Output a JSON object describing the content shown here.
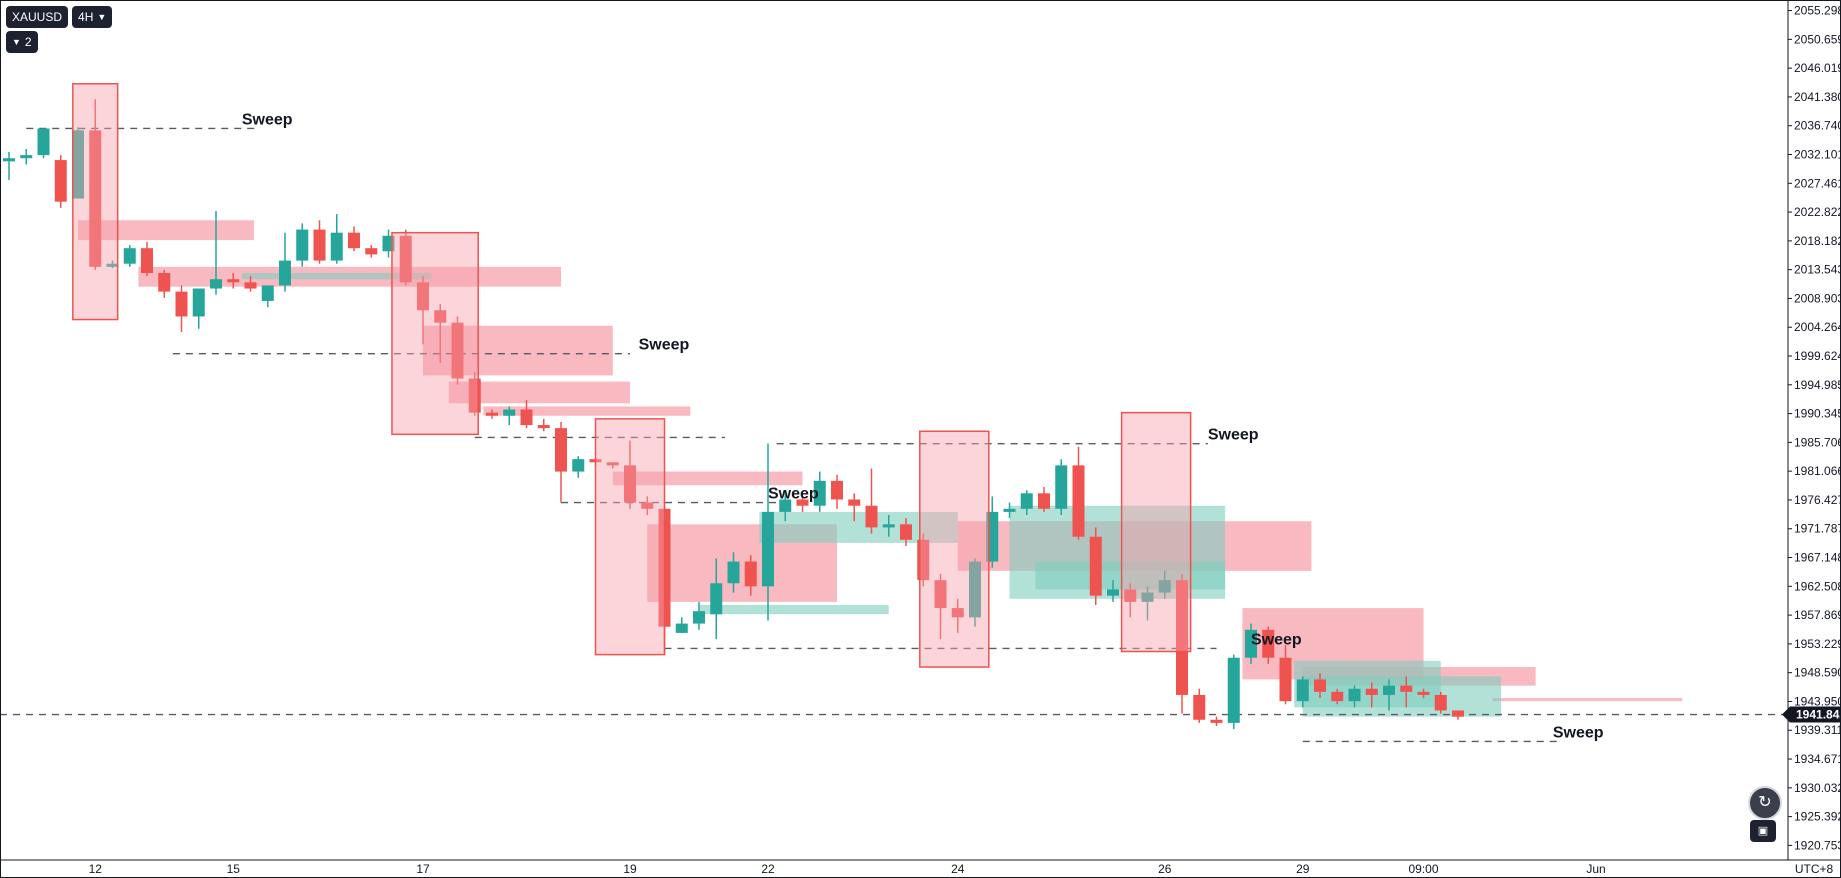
{
  "toolbar": {
    "symbol": "XAUUSD",
    "interval": "4H",
    "layers_count": "2"
  },
  "icons": {
    "interval_dropdown": "chevron-down-icon",
    "layers_toggle": "chevron-down-icon",
    "reset": "rotate-icon",
    "auto_scale": "auto-scale-icon"
  },
  "chart_data": {
    "type": "candlestick",
    "title": "",
    "xlabel": "",
    "ylabel": "",
    "timezone": "UTC+8",
    "ylim": [
      1918.4,
      2057.0
    ],
    "grid": false,
    "colors": {
      "up": "#26a69a",
      "down": "#ef5350",
      "zone_red": "#f7a1ab",
      "zone_green": "#7fcdbe",
      "text": "#131722"
    },
    "price_ticks": [
      "2055.298",
      "2050.659",
      "2046.019",
      "2041.380",
      "2036.740",
      "2032.101",
      "2027.461",
      "2022.822",
      "2018.182",
      "2013.543",
      "2008.903",
      "2004.264",
      "1999.624",
      "1994.985",
      "1990.345",
      "1985.706",
      "1981.066",
      "1976.427",
      "1971.787",
      "1967.148",
      "1962.508",
      "1957.869",
      "1953.229",
      "1948.590",
      "1943.950",
      "1939.311",
      "1934.671",
      "1930.032",
      "1925.392",
      "1920.753"
    ],
    "time_ticks": [
      {
        "label": "12",
        "bar": 5
      },
      {
        "label": "15",
        "bar": 13
      },
      {
        "label": "17",
        "bar": 24
      },
      {
        "label": "19",
        "bar": 36
      },
      {
        "label": "22",
        "bar": 44
      },
      {
        "label": "24",
        "bar": 55
      },
      {
        "label": "26",
        "bar": 67
      },
      {
        "label": "29",
        "bar": 75
      },
      {
        "label": "09:00",
        "bar": 82
      },
      {
        "label": "Jun",
        "bar": 92
      }
    ],
    "current_price": "1941.842",
    "candles": [
      [
        2031.0,
        2032.5,
        2028.0,
        2031.5
      ],
      [
        2031.5,
        2033.0,
        2030.5,
        2032.0
      ],
      [
        2032.0,
        2036.3,
        2031.5,
        2036.3
      ],
      [
        2031.2,
        2032.0,
        2023.5,
        2024.5
      ],
      [
        2025.0,
        2036.5,
        2025.0,
        2036.0
      ],
      [
        2036.0,
        2041.0,
        2013.5,
        2014.0
      ],
      [
        2014.0,
        2015.0,
        2013.8,
        2014.5
      ],
      [
        2014.5,
        2017.5,
        2014.0,
        2017.0
      ],
      [
        2017.0,
        2018.0,
        2012.5,
        2013.0
      ],
      [
        2013.0,
        2013.5,
        2009.0,
        2010.0
      ],
      [
        2010.0,
        2011.0,
        2003.5,
        2006.0
      ],
      [
        2006.0,
        2010.5,
        2004.0,
        2010.5
      ],
      [
        2010.5,
        2023.0,
        2009.5,
        2012.0
      ],
      [
        2012.0,
        2013.0,
        2010.5,
        2011.5
      ],
      [
        2011.5,
        2012.5,
        2010.0,
        2010.5
      ],
      [
        2008.5,
        2011.0,
        2007.5,
        2011.0
      ],
      [
        2011.0,
        2019.5,
        2010.0,
        2015.0
      ],
      [
        2015.0,
        2021.0,
        2014.0,
        2020.0
      ],
      [
        2020.0,
        2021.5,
        2014.5,
        2015.0
      ],
      [
        2015.0,
        2022.5,
        2014.5,
        2019.5
      ],
      [
        2019.5,
        2020.5,
        2016.5,
        2017.0
      ],
      [
        2017.0,
        2017.5,
        2015.5,
        2016.0
      ],
      [
        2016.5,
        2020.0,
        2015.5,
        2019.0
      ],
      [
        2019.0,
        2020.0,
        2011.0,
        2011.5
      ],
      [
        2011.5,
        2012.5,
        2001.5,
        2007.0
      ],
      [
        2007.0,
        2008.0,
        1998.5,
        2005.0
      ],
      [
        2005.0,
        2006.0,
        1995.0,
        1996.0
      ],
      [
        1996.0,
        1997.0,
        1990.0,
        1990.5
      ],
      [
        1990.5,
        1991.0,
        1989.5,
        1990.0
      ],
      [
        1990.0,
        1991.5,
        1988.5,
        1991.0
      ],
      [
        1991.0,
        1992.5,
        1988.0,
        1988.5
      ],
      [
        1988.5,
        1989.5,
        1987.5,
        1988.0
      ],
      [
        1988.0,
        1989.0,
        1976.0,
        1981.0
      ],
      [
        1981.0,
        1983.5,
        1980.0,
        1983.0
      ],
      [
        1983.0,
        1983.0,
        1982.0,
        1982.5
      ],
      [
        1982.5,
        1982.5,
        1981.5,
        1982.0
      ],
      [
        1982.0,
        1986.0,
        1975.0,
        1976.0
      ],
      [
        1976.0,
        1977.0,
        1974.0,
        1975.0
      ],
      [
        1975.0,
        1975.5,
        1951.5,
        1956.0
      ],
      [
        1955.0,
        1957.5,
        1955.0,
        1956.5
      ],
      [
        1956.5,
        1960.0,
        1955.5,
        1958.5
      ],
      [
        1958.0,
        1967.0,
        1954.0,
        1963.0
      ],
      [
        1963.0,
        1968.0,
        1961.5,
        1966.5
      ],
      [
        1966.5,
        1967.5,
        1961.0,
        1962.5
      ],
      [
        1962.5,
        1985.5,
        1957.0,
        1974.5
      ],
      [
        1974.5,
        1978.0,
        1973.0,
        1976.5
      ],
      [
        1976.5,
        1977.0,
        1974.5,
        1975.5
      ],
      [
        1975.5,
        1981.0,
        1974.5,
        1979.5
      ],
      [
        1979.5,
        1980.5,
        1975.0,
        1976.5
      ],
      [
        1976.5,
        1977.5,
        1973.0,
        1975.5
      ],
      [
        1975.5,
        1981.5,
        1971.0,
        1972.0
      ],
      [
        1972.0,
        1974.0,
        1970.5,
        1972.5
      ],
      [
        1972.5,
        1973.5,
        1969.0,
        1970.0
      ],
      [
        1970.0,
        1971.0,
        1962.5,
        1963.5
      ],
      [
        1963.5,
        1964.5,
        1954.0,
        1959.0
      ],
      [
        1959.0,
        1960.5,
        1955.0,
        1957.5
      ],
      [
        1957.5,
        1967.0,
        1956.0,
        1966.5
      ],
      [
        1966.5,
        1977.0,
        1965.5,
        1974.5
      ],
      [
        1974.5,
        1976.0,
        1973.5,
        1975.0
      ],
      [
        1975.0,
        1978.0,
        1974.0,
        1977.5
      ],
      [
        1977.5,
        1978.5,
        1974.5,
        1975.0
      ],
      [
        1975.0,
        1983.0,
        1974.0,
        1982.0
      ],
      [
        1982.0,
        1985.0,
        1970.0,
        1970.5
      ],
      [
        1970.5,
        1972.0,
        1959.5,
        1961.0
      ],
      [
        1961.0,
        1963.5,
        1960.0,
        1962.0
      ],
      [
        1962.0,
        1963.0,
        1957.5,
        1960.0
      ],
      [
        1960.0,
        1962.5,
        1957.0,
        1961.5
      ],
      [
        1961.5,
        1965.0,
        1960.5,
        1963.5
      ],
      [
        1963.5,
        1964.5,
        1942.0,
        1945.0
      ],
      [
        1945.0,
        1946.0,
        1940.5,
        1941.0
      ],
      [
        1941.0,
        1941.5,
        1940.0,
        1940.5
      ],
      [
        1940.5,
        1951.5,
        1939.5,
        1951.0
      ],
      [
        1951.0,
        1956.5,
        1950.0,
        1955.5
      ],
      [
        1955.5,
        1956.0,
        1950.0,
        1951.0
      ],
      [
        1951.0,
        1953.0,
        1943.5,
        1944.0
      ],
      [
        1944.0,
        1948.0,
        1943.0,
        1947.5
      ],
      [
        1947.5,
        1948.5,
        1944.5,
        1945.5
      ],
      [
        1945.5,
        1946.0,
        1943.5,
        1944.0
      ],
      [
        1944.0,
        1946.5,
        1943.0,
        1946.0
      ],
      [
        1946.0,
        1947.0,
        1943.0,
        1945.0
      ],
      [
        1945.0,
        1947.5,
        1942.5,
        1946.5
      ],
      [
        1946.5,
        1948.0,
        1943.0,
        1945.5
      ],
      [
        1945.5,
        1946.0,
        1944.5,
        1945.0
      ],
      [
        1945.0,
        1945.5,
        1942.0,
        1942.5
      ],
      [
        1942.5,
        1942.5,
        1941.0,
        1941.5
      ]
    ],
    "red_boxes": [
      {
        "bar_start": 3.7,
        "bar_end": 6.3,
        "y_top": 2043.5,
        "y_bottom": 2005.5
      },
      {
        "bar_start": 22.2,
        "bar_end": 27.2,
        "y_top": 2019.5,
        "y_bottom": 1987.0
      },
      {
        "bar_start": 34.0,
        "bar_end": 38.0,
        "y_top": 1989.5,
        "y_bottom": 1951.5
      },
      {
        "bar_start": 52.8,
        "bar_end": 56.8,
        "y_top": 1987.5,
        "y_bottom": 1949.5
      },
      {
        "bar_start": 64.5,
        "bar_end": 68.5,
        "y_top": 1990.5,
        "y_bottom": 1952.0
      }
    ],
    "red_zones": [
      {
        "bar_start": 4.0,
        "bar_end": 14.2,
        "y_top": 2021.5,
        "y_bottom": 2018.3
      },
      {
        "bar_start": 7.5,
        "bar_end": 32.0,
        "y_top": 2014.0,
        "y_bottom": 2010.8
      },
      {
        "bar_start": 24.0,
        "bar_end": 35.0,
        "y_top": 2004.5,
        "y_bottom": 1996.5
      },
      {
        "bar_start": 25.5,
        "bar_end": 36.0,
        "y_top": 1995.5,
        "y_bottom": 1992.0
      },
      {
        "bar_start": 27.5,
        "bar_end": 39.5,
        "y_top": 1991.5,
        "y_bottom": 1990.0
      },
      {
        "bar_start": 35.0,
        "bar_end": 46.0,
        "y_top": 1981.0,
        "y_bottom": 1978.8
      },
      {
        "bar_start": 37.0,
        "bar_end": 48.0,
        "y_top": 1972.5,
        "y_bottom": 1960.0
      },
      {
        "bar_start": 55.0,
        "bar_end": 75.5,
        "y_top": 1973.0,
        "y_bottom": 1965.0
      },
      {
        "bar_start": 71.5,
        "bar_end": 82.0,
        "y_top": 1959.0,
        "y_bottom": 1947.5
      },
      {
        "bar_start": 75.0,
        "bar_end": 88.5,
        "y_top": 1949.5,
        "y_bottom": 1946.5
      },
      {
        "bar_start": 86.0,
        "bar_end": 97.0,
        "y_top": 1944.5,
        "y_bottom": 1944.0
      }
    ],
    "green_zones": [
      {
        "bar_start": 13.5,
        "bar_end": 24.5,
        "y_top": 2013.0,
        "y_bottom": 2012.0
      },
      {
        "bar_start": 40.0,
        "bar_end": 51.0,
        "y_top": 1959.5,
        "y_bottom": 1958.0
      },
      {
        "bar_start": 43.5,
        "bar_end": 55.0,
        "y_top": 1974.5,
        "y_bottom": 1969.5
      },
      {
        "bar_start": 58.0,
        "bar_end": 70.5,
        "y_top": 1975.5,
        "y_bottom": 1960.5
      },
      {
        "bar_start": 59.5,
        "bar_end": 70.5,
        "y_top": 1966.5,
        "y_bottom": 1962.0
      },
      {
        "bar_start": 74.5,
        "bar_end": 83.0,
        "y_top": 1950.5,
        "y_bottom": 1943.0
      },
      {
        "bar_start": 75.0,
        "bar_end": 86.5,
        "y_top": 1948.0,
        "y_bottom": 1941.5
      }
    ],
    "sweep_lines": [
      {
        "bar_start": 1.0,
        "bar_end": 14.5,
        "y": 2036.3,
        "label": "Sweep",
        "label_bar": 13.5
      },
      {
        "bar_start": 9.5,
        "bar_end": 36.0,
        "y": 2000.0,
        "label": "Sweep",
        "label_bar": 36.5
      },
      {
        "bar_start": 27.0,
        "bar_end": 41.5,
        "y": 1986.5,
        "label": "",
        "label_bar": 0
      },
      {
        "bar_start": 44.5,
        "bar_end": 69.5,
        "y": 1985.5,
        "label": "Sweep",
        "label_bar": 69.5
      },
      {
        "bar_start": 32.0,
        "bar_end": 44.5,
        "y": 1976.0,
        "label": "Sweep",
        "label_bar": 44.0
      },
      {
        "bar_start": 38.0,
        "bar_end": 70.0,
        "y": 1952.5,
        "label": "Sweep",
        "label_bar": 72.0
      },
      {
        "bar_start": 75.0,
        "bar_end": 90.0,
        "y": 1937.5,
        "label": "Sweep",
        "label_bar": 89.5
      }
    ]
  }
}
